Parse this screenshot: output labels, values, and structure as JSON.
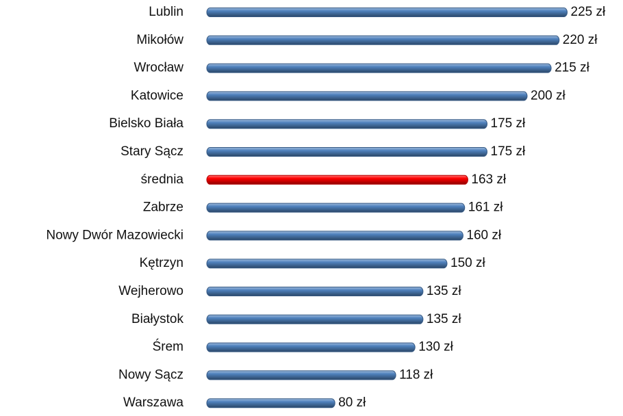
{
  "chart_data": {
    "type": "hbar",
    "categories": [
      "Lublin",
      "Mikołów",
      "Wrocław",
      "Katowice",
      "Bielsko Biała",
      "Stary Sącz",
      "średnia",
      "Zabrze",
      "Nowy Dwór Mazowiecki",
      "Kętrzyn",
      "Wejherowo",
      "Białystok",
      "Śrem",
      "Nowy Sącz",
      "Warszawa"
    ],
    "values": [
      225,
      220,
      215,
      200,
      175,
      175,
      163,
      161,
      160,
      150,
      135,
      135,
      130,
      118,
      80
    ],
    "value_labels": [
      "225 zł",
      "220 zł",
      "215 zł",
      "200 zł",
      "175 zł",
      "175 zł",
      "163 zł",
      "161 zł",
      "160 zł",
      "150 zł",
      "135 zł",
      "135 zł",
      "130 zł",
      "118 zł",
      "80 zł"
    ],
    "colors": [
      "#4f81bd",
      "#4f81bd",
      "#4f81bd",
      "#4f81bd",
      "#4f81bd",
      "#4f81bd",
      "#ff0000",
      "#4f81bd",
      "#4f81bd",
      "#4f81bd",
      "#4f81bd",
      "#4f81bd",
      "#4f81bd",
      "#4f81bd",
      "#4f81bd"
    ],
    "xlim": [
      0,
      250
    ]
  }
}
